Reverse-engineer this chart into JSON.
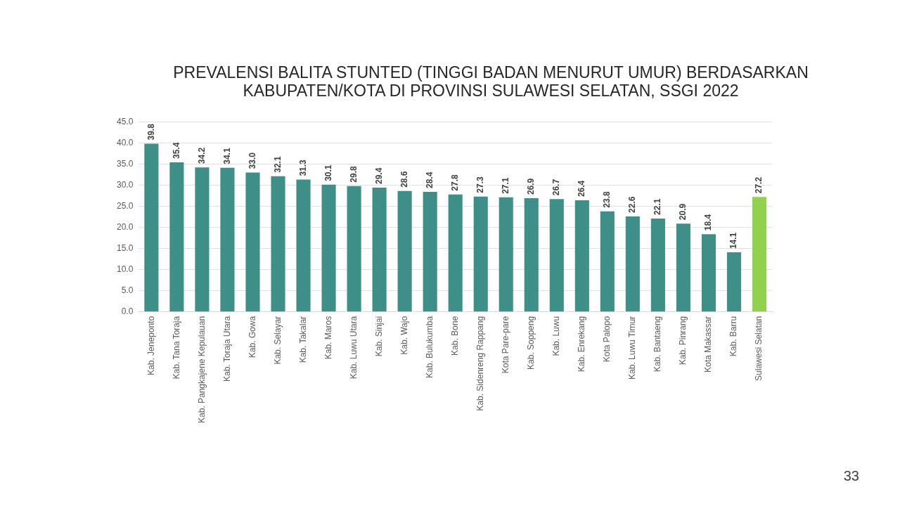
{
  "chart_data": {
    "type": "bar",
    "title": "PREVALENSI BALITA STUNTED (TINGGI BADAN MENURUT UMUR) BERDASARKAN KABUPATEN/KOTA DI PROVINSI SULAWESI SELATAN, SSGI 2022",
    "categories": [
      "Kab. Jeneponto",
      "Kab. Tana Toraja",
      "Kab. Pangkajene Kepulauan",
      "Kab. Toraja Utara",
      "Kab. Gowa",
      "Kab. Selayar",
      "Kab. Takalar",
      "Kab. Maros",
      "Kab. Luwu Utara",
      "Kab. Sinjai",
      "Kab. Wajo",
      "Kab. Bulukumba",
      "Kab. Bone",
      "Kab. Sidenreng Rappang",
      "Kota Pare-pare",
      "Kab. Soppeng",
      "Kab. Luwu",
      "Kab. Enrekang",
      "Kota Palopo",
      "Kab. Luwu Timur",
      "Kab. Bantaeng",
      "Kab. Pinrang",
      "Kota Makassar",
      "Kab. Barru",
      "Sulawesi Selatan"
    ],
    "values": [
      39.8,
      35.4,
      34.2,
      34.1,
      33.0,
      32.1,
      31.3,
      30.1,
      29.8,
      29.4,
      28.6,
      28.4,
      27.8,
      27.3,
      27.1,
      26.9,
      26.7,
      26.4,
      23.8,
      22.6,
      22.1,
      20.9,
      18.4,
      14.1,
      27.2
    ],
    "colors": [
      "#3d8f87",
      "#3d8f87",
      "#3d8f87",
      "#3d8f87",
      "#3d8f87",
      "#3d8f87",
      "#3d8f87",
      "#3d8f87",
      "#3d8f87",
      "#3d8f87",
      "#3d8f87",
      "#3d8f87",
      "#3d8f87",
      "#3d8f87",
      "#3d8f87",
      "#3d8f87",
      "#3d8f87",
      "#3d8f87",
      "#3d8f87",
      "#3d8f87",
      "#3d8f87",
      "#3d8f87",
      "#3d8f87",
      "#3d8f87",
      "#92d050"
    ],
    "value_labels": [
      "39.8",
      "35.4",
      "34.2",
      "34.1",
      "33.0",
      "32.1",
      "31.3",
      "30.1",
      "29.8",
      "29.4",
      "28.6",
      "28.4",
      "27.8",
      "27.3",
      "27.1",
      "26.9",
      "26.7",
      "26.4",
      "23.8",
      "22.6",
      "22.1",
      "20.9",
      "18.4",
      "14.1",
      "27.2"
    ],
    "ylim": [
      0,
      45
    ],
    "yticks": [
      {
        "value": 0,
        "label": "0.0"
      },
      {
        "value": 5,
        "label": "5.0"
      },
      {
        "value": 10,
        "label": "10.0"
      },
      {
        "value": 15,
        "label": "15.0"
      },
      {
        "value": 20,
        "label": "20.0"
      },
      {
        "value": 25,
        "label": "25.0"
      },
      {
        "value": 30,
        "label": "30.0"
      },
      {
        "value": 35,
        "label": "35.0"
      },
      {
        "value": 40,
        "label": "40.0"
      },
      {
        "value": 45,
        "label": "45.0"
      }
    ],
    "grid": "y",
    "legend": false,
    "annotations": [
      "33"
    ]
  }
}
